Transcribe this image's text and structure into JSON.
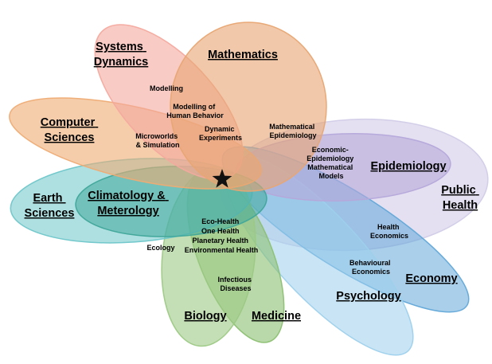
{
  "colors": {
    "mathematics": "#E8A572",
    "systems_dynamics": "#F4A99E",
    "computer_sciences": "#EFAB73",
    "epidemiology": "#B5A8DA",
    "public_health": "#D2CCE8",
    "earth_sciences": "#6DC6C9",
    "climatology": "#3FA79A",
    "biology": "#9CC984",
    "medicine": "#8CC072",
    "psychology": "#9DD0EC",
    "economy": "#62A8D9",
    "star": "#111111"
  },
  "domains": {
    "systems_dynamics": [
      "Systems",
      "Dynamics"
    ],
    "mathematics": [
      "Mathematics"
    ],
    "computer_sciences": [
      "Computer",
      "Sciences"
    ],
    "epidemiology": [
      "Epidemiology"
    ],
    "public_health": [
      "Public",
      "Health"
    ],
    "earth_sciences": [
      "Earth",
      "Sciences"
    ],
    "climatology": [
      "Climatology &",
      "Meterology"
    ],
    "economy": [
      "Economy"
    ],
    "psychology": [
      "Psychology"
    ],
    "biology": [
      "Biology"
    ],
    "medicine": [
      "Medicine"
    ]
  },
  "overlaps": {
    "modelling": [
      "Modelling"
    ],
    "modelling_human_behavior": [
      "Modelling of",
      "Human Behavior"
    ],
    "dynamic_experiments": [
      "Dynamic",
      "Experiments"
    ],
    "microworlds": [
      "Microworlds",
      "& Simulation"
    ],
    "mathematical_epidemiology": [
      "Mathematical",
      "Epidemiology"
    ],
    "economic_epidemiology": [
      "Economic-",
      "Epidemiology",
      "Mathematical",
      "Models"
    ],
    "health_economics": [
      "Health",
      "Economics"
    ],
    "behavioural_economics": [
      "Behavioural",
      "Economics"
    ],
    "eco_health": [
      "Eco-Health",
      "One Health",
      "Planetary Health",
      "Environmental Health"
    ],
    "ecology": [
      "Ecology"
    ],
    "infectious_diseases": [
      "Infectious",
      "Diseases"
    ]
  },
  "center_icon": "star-icon"
}
